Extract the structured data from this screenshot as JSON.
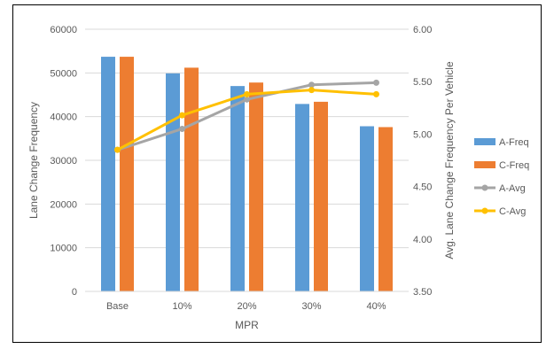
{
  "chart_data": {
    "type": "bar",
    "title": "",
    "xlabel": "MPR",
    "ylabel": "Lane Change Frequency",
    "y2label": "Avg. Lane Change Frequency Per Vehicle",
    "categories": [
      "Base",
      "10%",
      "20%",
      "30%",
      "40%"
    ],
    "ylim": [
      0,
      60000
    ],
    "yticks": [
      "0",
      "10000",
      "20000",
      "30000",
      "40000",
      "50000",
      "60000"
    ],
    "y2lim": [
      3.5,
      6.0
    ],
    "y2ticks": [
      "3.50",
      "4.00",
      "4.50",
      "5.00",
      "5.50",
      "6.00"
    ],
    "grid": true,
    "legend_position": "right",
    "series": [
      {
        "name": "A-Freq",
        "kind": "bar",
        "axis": "left",
        "color": "#5B9BD5",
        "values": [
          53700,
          49900,
          47000,
          42900,
          37800
        ]
      },
      {
        "name": "C-Freq",
        "kind": "bar",
        "axis": "left",
        "color": "#ED7D31",
        "values": [
          53700,
          51200,
          47800,
          43400,
          37600
        ]
      },
      {
        "name": "A-Avg",
        "kind": "line",
        "axis": "right",
        "color": "#A5A5A5",
        "values": [
          4.85,
          5.05,
          5.33,
          5.47,
          5.49
        ]
      },
      {
        "name": "C-Avg",
        "kind": "line",
        "axis": "right",
        "color": "#FFC000",
        "values": [
          4.85,
          5.18,
          5.38,
          5.42,
          5.38
        ]
      }
    ]
  }
}
